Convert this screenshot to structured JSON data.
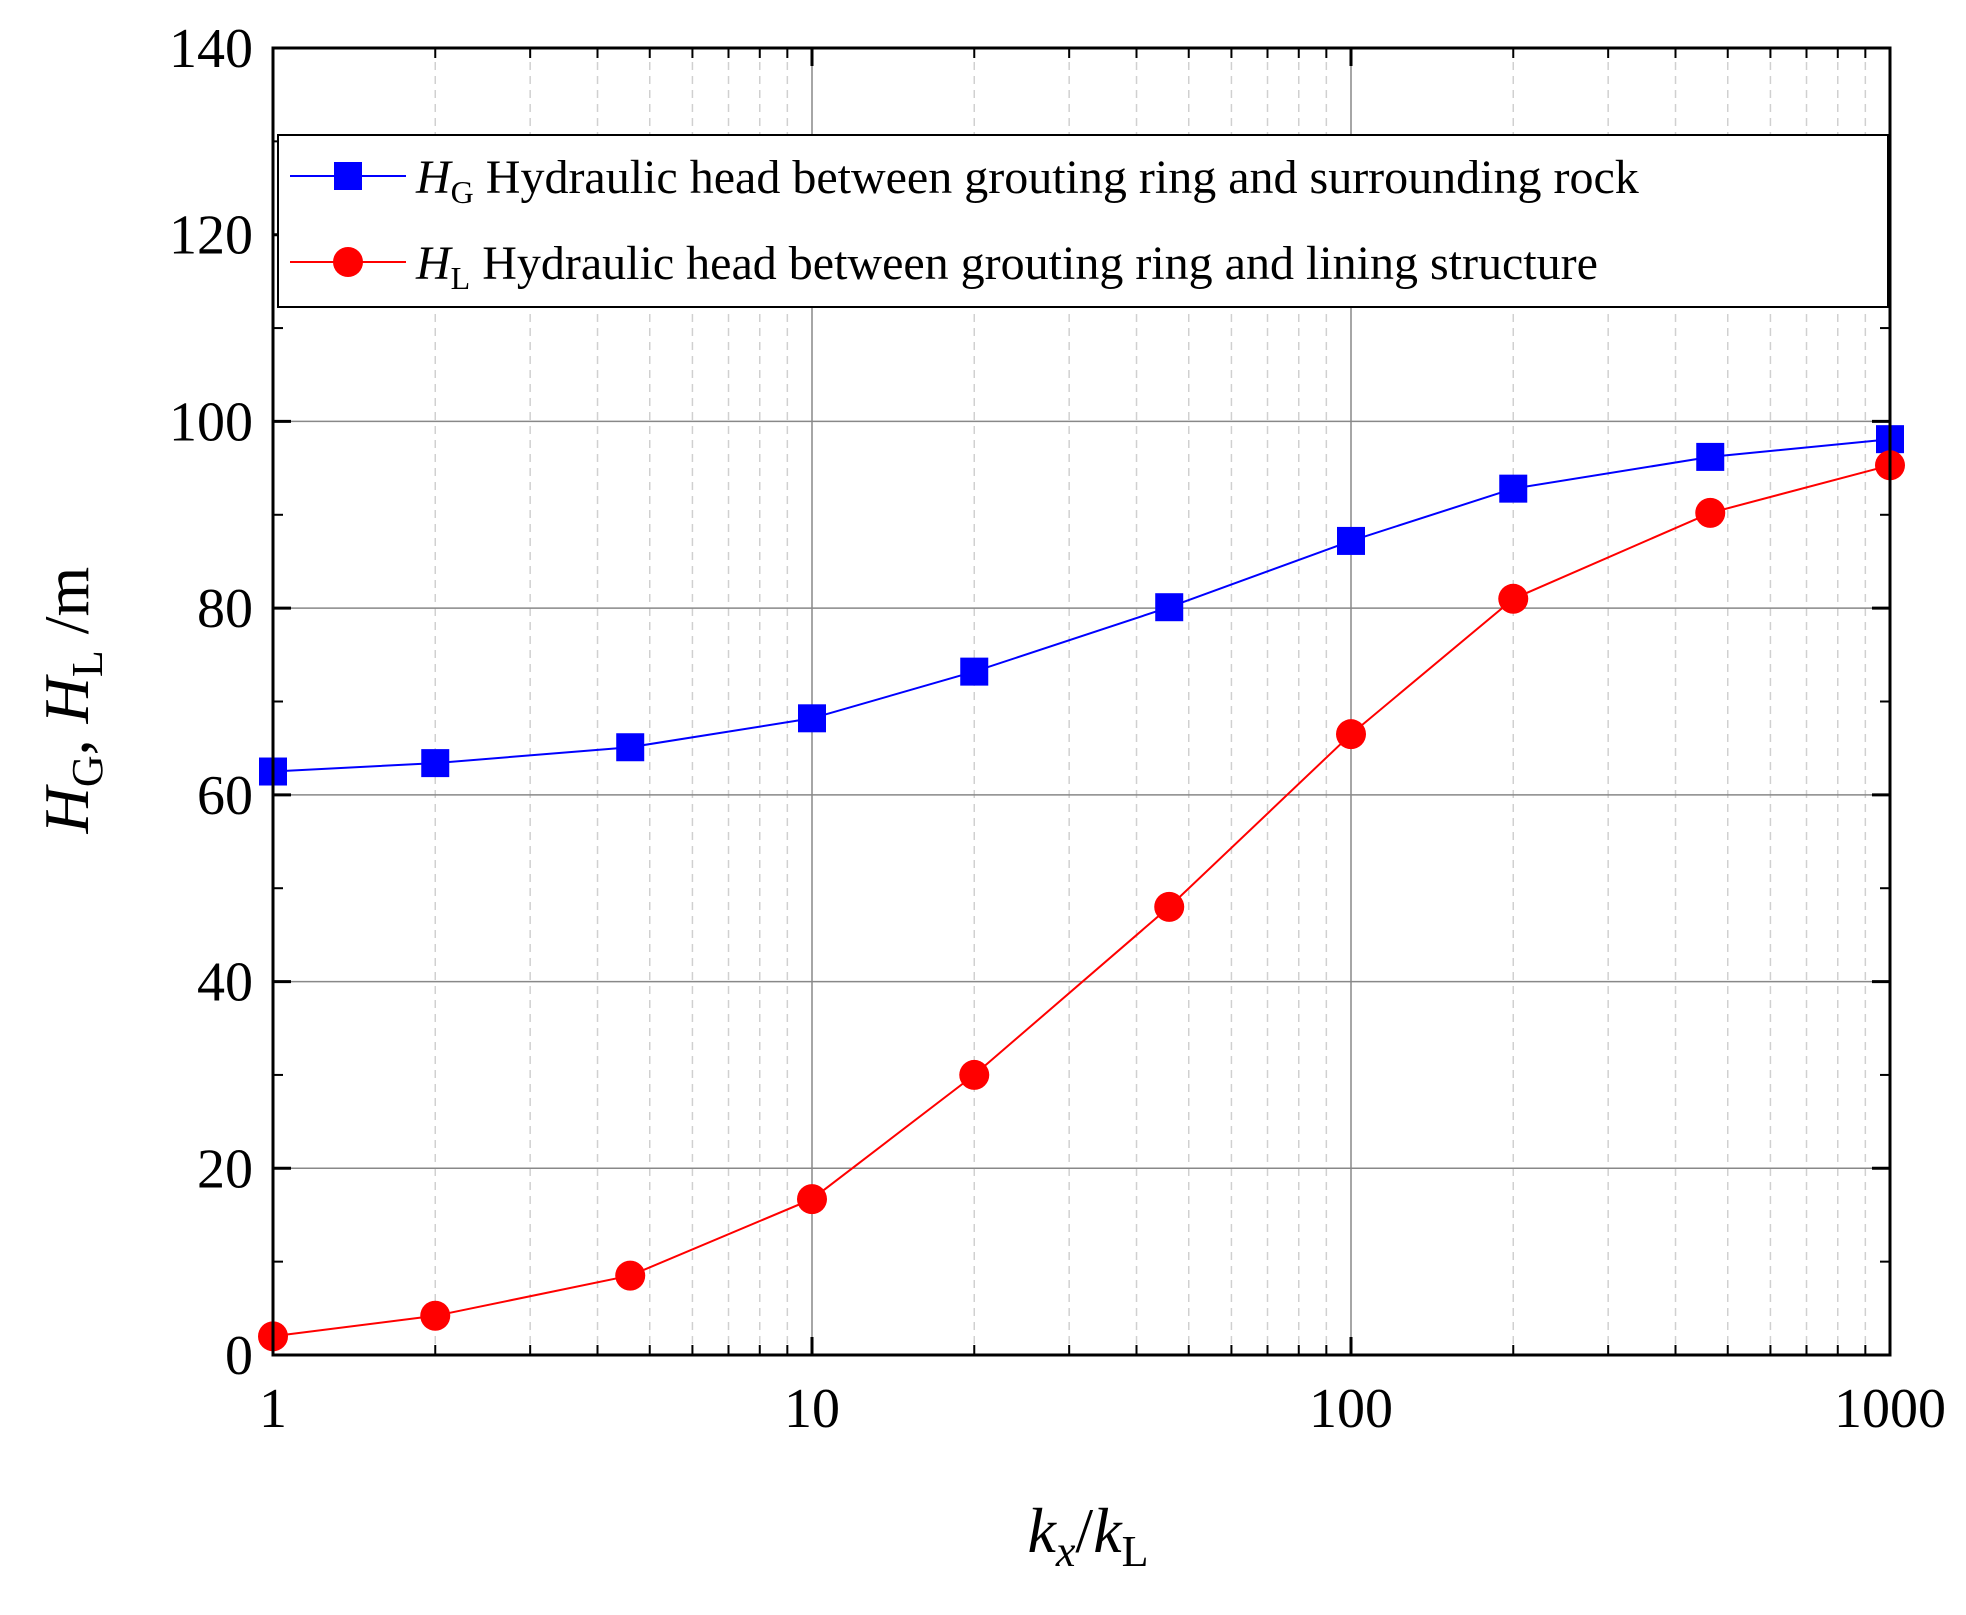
{
  "chart_data": {
    "type": "line",
    "x_scale": "log",
    "xlim": [
      1,
      1000
    ],
    "ylim": [
      0,
      140
    ],
    "x_ticks": [
      1,
      10,
      100,
      1000
    ],
    "x_tick_labels": [
      "1",
      "10",
      "100",
      "1000"
    ],
    "y_ticks": [
      0,
      20,
      40,
      60,
      80,
      100,
      120,
      140
    ],
    "y_tick_labels": [
      "0",
      "20",
      "40",
      "60",
      "80",
      "100",
      "120",
      "140"
    ],
    "xlabel": {
      "main": "k",
      "sub1": "x",
      "slash": "/",
      "main2": "k",
      "sub2": "L"
    },
    "ylabel": {
      "h1": "H",
      "sub1": "G",
      "comma": ", ",
      "h2": "H",
      "sub2": "L",
      "unit": " /m"
    },
    "grid": true,
    "legend_position": "top",
    "x": [
      1,
      2,
      4.6,
      10,
      20,
      46,
      100,
      200,
      464,
      1000
    ],
    "series": [
      {
        "name": "HG",
        "symbol": "H",
        "subscript": "G",
        "description": "Hydraulic head between grouting ring and surrounding rock",
        "color": "#0000ff",
        "marker": "square",
        "values": [
          62.5,
          63.4,
          65.1,
          68.2,
          73.2,
          80.1,
          87.2,
          92.8,
          96.2,
          98.1
        ]
      },
      {
        "name": "HL",
        "symbol": "H",
        "subscript": "L",
        "description": "Hydraulic head between grouting ring and lining structure",
        "color": "#ff0000",
        "marker": "circle",
        "values": [
          2.0,
          4.2,
          8.5,
          16.7,
          30.0,
          48.0,
          66.5,
          81.0,
          90.2,
          95.3
        ]
      }
    ]
  }
}
